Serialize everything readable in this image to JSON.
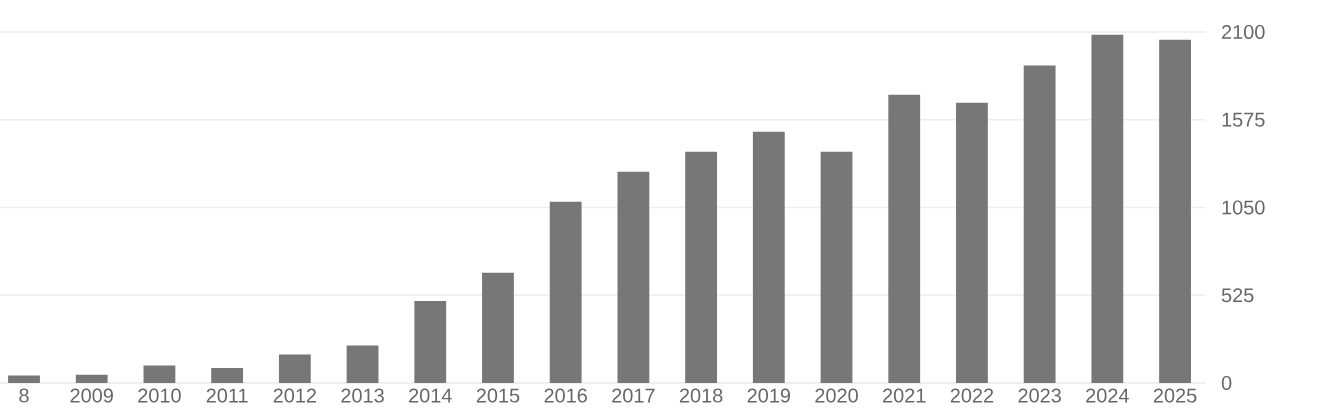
{
  "chart_data": {
    "type": "bar",
    "categories": [
      "8",
      "2009",
      "2010",
      "2011",
      "2012",
      "2013",
      "2014",
      "2015",
      "2016",
      "2017",
      "2018",
      "2019",
      "2020",
      "2021",
      "2022",
      "2023",
      "2024",
      "2025"
    ],
    "values": [
      45,
      50,
      105,
      90,
      170,
      225,
      490,
      660,
      1084,
      1264,
      1384,
      1503,
      1384,
      1725,
      1677,
      1899,
      2084,
      2054
    ],
    "color": "#777777",
    "ylim": [
      0,
      2100
    ],
    "yticks": [
      0,
      525,
      1050,
      1575,
      2100
    ],
    "grid": "y"
  }
}
